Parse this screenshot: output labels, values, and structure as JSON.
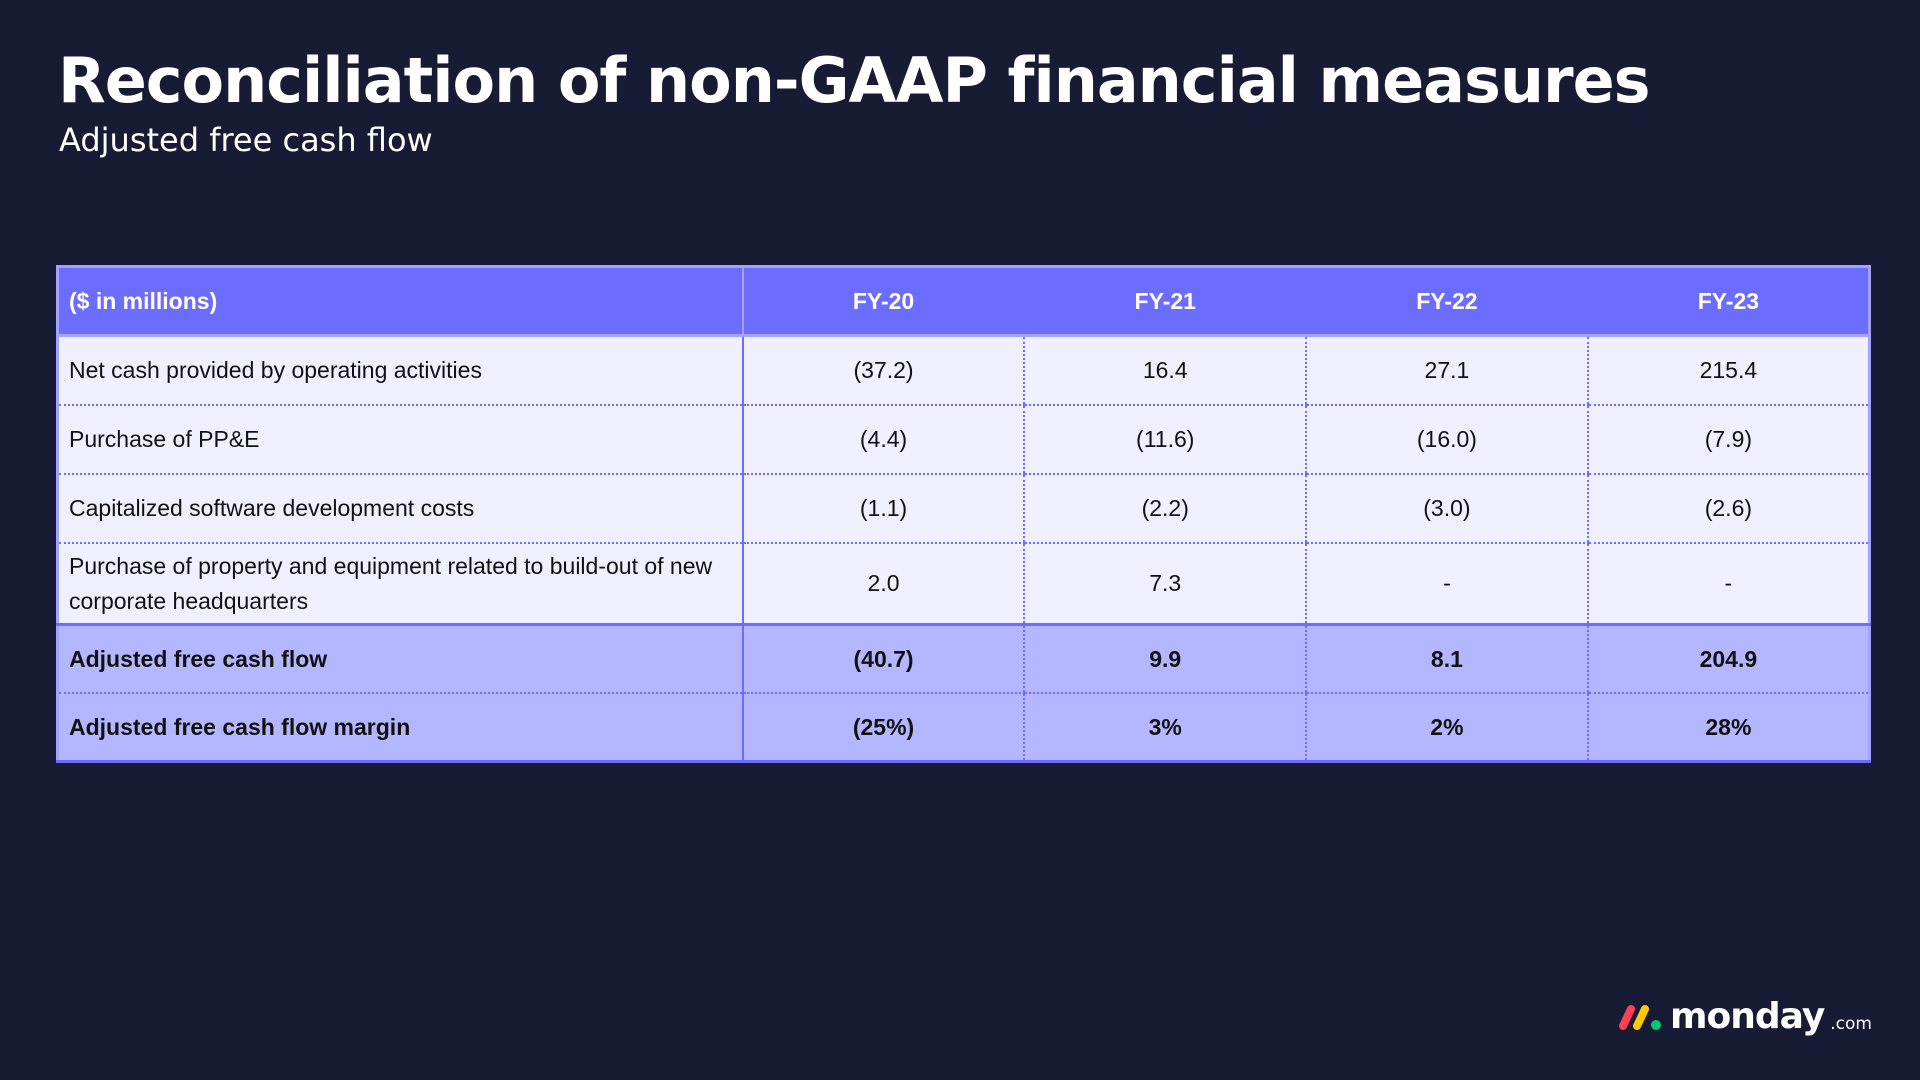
{
  "slide": {
    "title": "Reconciliation of non-GAAP financial measures",
    "subtitle": "Adjusted free cash flow"
  },
  "table": {
    "columns": [
      "($ in millions)",
      "FY-20",
      "FY-21",
      "FY-22",
      "FY-23"
    ],
    "rows": [
      {
        "label": "Net cash provided by operating activities",
        "values": [
          "(37.2)",
          "16.4",
          "27.1",
          "215.4"
        ]
      },
      {
        "label": "Purchase of PP&E",
        "values": [
          "(4.4)",
          "(11.6)",
          "(16.0)",
          "(7.9)"
        ]
      },
      {
        "label": "Capitalized software development costs",
        "values": [
          "(1.1)",
          "(2.2)",
          "(3.0)",
          "(2.6)"
        ]
      },
      {
        "label": "Purchase of property and equipment related to build-out of new corporate headquarters",
        "values": [
          "2.0",
          "7.3",
          "-",
          "-"
        ]
      }
    ],
    "totals": [
      {
        "label": "Adjusted free cash flow",
        "values": [
          "(40.7)",
          "9.9",
          "8.1",
          "204.9"
        ]
      },
      {
        "label": "Adjusted free cash flow margin",
        "values": [
          "(25%)",
          "3%",
          "2%",
          "28%"
        ]
      }
    ]
  },
  "logo": {
    "word": "monday",
    "suffix": ".com",
    "colors": [
      "#ff3d57",
      "#ffcb00",
      "#00ca72"
    ]
  }
}
